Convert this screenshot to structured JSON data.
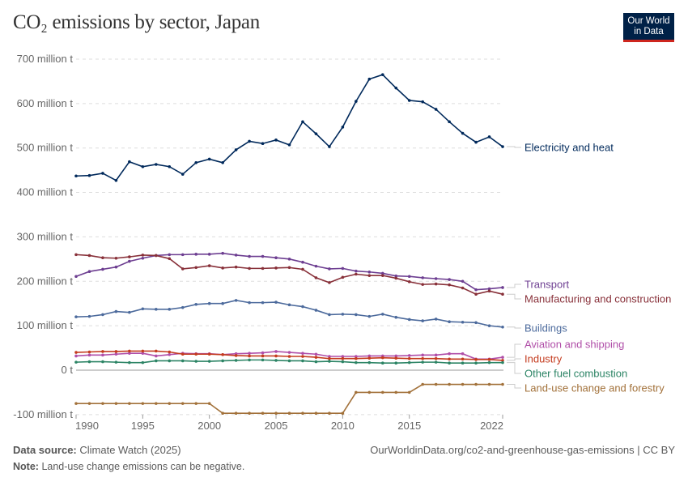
{
  "title": "CO₂ emissions by sector, Japan",
  "logo": "Our World in Data",
  "footer": {
    "source_label": "Data source:",
    "source": "Climate Watch (2025)",
    "url": "OurWorldinData.org/co2-and-greenhouse-gas-emissions | CC BY",
    "note_label": "Note:",
    "note": "Land-use change emissions can be negative."
  },
  "chart_data": {
    "type": "line",
    "title": "CO₂ emissions by sector, Japan",
    "xlabel": "",
    "ylabel": "",
    "xlim": [
      1990,
      2022
    ],
    "ylim": [
      -100,
      700
    ],
    "grid": true,
    "legend": "right-inline",
    "x_ticks": [
      "1990",
      "1995",
      "2000",
      "2005",
      "2010",
      "2015",
      "2022"
    ],
    "y_ticks": [
      {
        "v": 700,
        "label": "700 million t"
      },
      {
        "v": 600,
        "label": "600 million t"
      },
      {
        "v": 500,
        "label": "500 million t"
      },
      {
        "v": 400,
        "label": "400 million t"
      },
      {
        "v": 300,
        "label": "300 million t"
      },
      {
        "v": 200,
        "label": "200 million t"
      },
      {
        "v": 100,
        "label": "100 million t"
      },
      {
        "v": 0,
        "label": "0 t"
      },
      {
        "v": -100,
        "label": "-100 million t"
      }
    ],
    "x": [
      1990,
      1991,
      1992,
      1993,
      1994,
      1995,
      1996,
      1997,
      1998,
      1999,
      2000,
      2001,
      2002,
      2003,
      2004,
      2005,
      2006,
      2007,
      2008,
      2009,
      2010,
      2011,
      2012,
      2013,
      2014,
      2015,
      2016,
      2017,
      2018,
      2019,
      2020,
      2021,
      2022
    ],
    "series": [
      {
        "name": "Electricity and heat",
        "color": "#00295b",
        "values": [
          437,
          438,
          443,
          427,
          469,
          458,
          463,
          458,
          441,
          467,
          475,
          467,
          496,
          515,
          510,
          518,
          507,
          559,
          532,
          503,
          547,
          605,
          655,
          665,
          635,
          607,
          604,
          587,
          559,
          533,
          513,
          525,
          503
        ]
      },
      {
        "name": "Transport",
        "color": "#6d3e91",
        "values": [
          211,
          222,
          227,
          232,
          245,
          252,
          258,
          260,
          260,
          261,
          261,
          263,
          259,
          256,
          256,
          253,
          250,
          243,
          234,
          228,
          229,
          223,
          221,
          218,
          212,
          211,
          208,
          206,
          204,
          200,
          181,
          183,
          186
        ]
      },
      {
        "name": "Manufacturing and construction",
        "color": "#883039",
        "values": [
          260,
          258,
          253,
          252,
          255,
          259,
          258,
          251,
          228,
          231,
          235,
          230,
          232,
          229,
          229,
          230,
          231,
          227,
          208,
          197,
          209,
          216,
          213,
          213,
          207,
          199,
          193,
          194,
          192,
          185,
          171,
          178,
          171
        ]
      },
      {
        "name": "Buildings",
        "color": "#4c6a9c",
        "values": [
          120,
          121,
          125,
          132,
          130,
          138,
          137,
          137,
          141,
          148,
          150,
          150,
          157,
          152,
          152,
          153,
          147,
          143,
          135,
          125,
          126,
          125,
          121,
          126,
          119,
          114,
          111,
          115,
          109,
          108,
          107,
          100,
          97
        ]
      },
      {
        "name": "Aviation and shipping",
        "color": "#b04ea8",
        "values": [
          32,
          34,
          34,
          36,
          38,
          38,
          32,
          35,
          38,
          37,
          37,
          35,
          37,
          38,
          39,
          42,
          40,
          38,
          36,
          31,
          31,
          31,
          32,
          32,
          32,
          33,
          34,
          34,
          37,
          37,
          25,
          25,
          29
        ]
      },
      {
        "name": "Industry",
        "color": "#c43b1e",
        "values": [
          40,
          41,
          42,
          42,
          43,
          43,
          43,
          41,
          36,
          36,
          36,
          35,
          33,
          32,
          32,
          32,
          31,
          31,
          29,
          26,
          26,
          26,
          27,
          28,
          27,
          26,
          26,
          26,
          25,
          25,
          24,
          24,
          22
        ]
      },
      {
        "name": "Other fuel combustion",
        "color": "#2c8465",
        "values": [
          18,
          19,
          19,
          18,
          17,
          17,
          21,
          21,
          21,
          20,
          20,
          21,
          22,
          23,
          23,
          22,
          21,
          21,
          19,
          20,
          19,
          17,
          17,
          16,
          16,
          17,
          18,
          18,
          16,
          16,
          16,
          17,
          17
        ]
      },
      {
        "name": "Land-use change and forestry",
        "color": "#a2713a",
        "values": [
          -75,
          -75,
          -75,
          -75,
          -75,
          -75,
          -75,
          -75,
          -75,
          -75,
          -75,
          -97,
          -97,
          -97,
          -97,
          -97,
          -97,
          -97,
          -97,
          -97,
          -97,
          -50,
          -50,
          -50,
          -50,
          -50,
          -32,
          -32,
          -32,
          -32,
          -32,
          -32,
          -32
        ]
      }
    ]
  }
}
